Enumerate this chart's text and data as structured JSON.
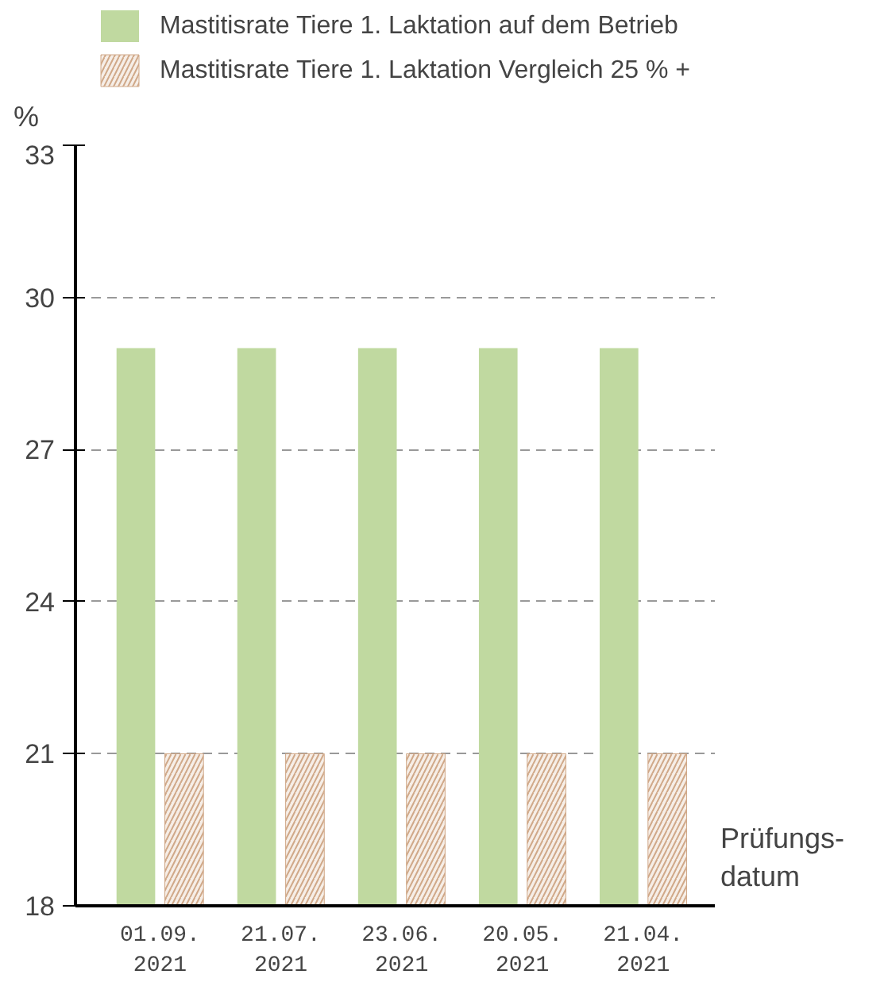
{
  "chart_data": {
    "type": "bar",
    "ylabel": "%",
    "xlabel": "Prüfungs-\ndatum",
    "categories": [
      "01.09.\n2021",
      "21.07.\n2021",
      "23.06.\n2021",
      "20.05.\n2021",
      "21.04.\n2021"
    ],
    "series": [
      {
        "name": "Mastitisrate Tiere 1. Laktation auf dem Betrieb",
        "color": "#c0d9a0",
        "values": [
          29,
          29,
          29,
          29,
          29
        ]
      },
      {
        "name": "Mastitisrate Tiere 1. Laktation Vergleich 25 % +",
        "color": "#d0a888",
        "values": [
          21,
          21,
          21,
          21,
          21
        ]
      }
    ],
    "ylim": [
      18,
      33
    ],
    "yticks": [
      18,
      21,
      24,
      27,
      30,
      33
    ],
    "grid": "y",
    "legend": "top"
  }
}
